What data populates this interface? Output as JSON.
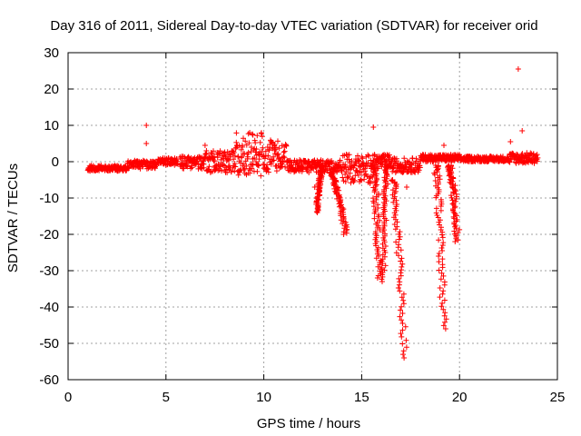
{
  "chart_data": {
    "type": "scatter",
    "title": "Day 316 of 2011, Sidereal Day-to-day VTEC variation (SDTVAR) for receiver orid",
    "xlabel": "GPS time / hours",
    "ylabel": "SDTVAR / TECUs",
    "xlim": [
      0,
      25
    ],
    "ylim": [
      -60,
      30
    ],
    "xticks": [
      0,
      5,
      10,
      15,
      20,
      25
    ],
    "yticks": [
      30,
      20,
      10,
      0,
      -10,
      -20,
      -30,
      -40,
      -50,
      -60
    ],
    "grid": true,
    "marker": "+",
    "color": "#ff0000",
    "bands": [
      {
        "x0": 1.0,
        "x1": 3.0,
        "lo": -2.6,
        "hi": -1.0
      },
      {
        "x0": 3.0,
        "x1": 4.5,
        "lo": -2.0,
        "hi": 0.3
      },
      {
        "x0": 4.5,
        "x1": 5.6,
        "lo": -1.0,
        "hi": 1.0
      },
      {
        "x0": 5.7,
        "x1": 7.0,
        "lo": -2.0,
        "hi": 1.5
      },
      {
        "x0": 7.0,
        "x1": 8.5,
        "lo": -3.0,
        "hi": 3.0
      },
      {
        "x0": 8.5,
        "x1": 10.0,
        "lo": -4.0,
        "hi": 8.0
      },
      {
        "x0": 10.0,
        "x1": 11.2,
        "lo": -3.0,
        "hi": 6.0
      },
      {
        "x0": 11.2,
        "x1": 12.5,
        "lo": -3.0,
        "hi": 0.5
      },
      {
        "x0": 12.5,
        "x1": 14.0,
        "lo": -3.0,
        "hi": 0.5
      },
      {
        "x0": 14.0,
        "x1": 15.5,
        "lo": -6.0,
        "hi": 2.0
      },
      {
        "x0": 15.5,
        "x1": 16.5,
        "lo": -2.0,
        "hi": 2.0
      },
      {
        "x0": 16.5,
        "x1": 18.0,
        "lo": -3.0,
        "hi": 1.0
      },
      {
        "x0": 18.0,
        "x1": 20.0,
        "lo": 0.0,
        "hi": 2.0
      },
      {
        "x0": 20.0,
        "x1": 22.5,
        "lo": 0.0,
        "hi": 1.5
      },
      {
        "x0": 22.5,
        "x1": 24.0,
        "lo": -0.5,
        "hi": 2.5
      }
    ],
    "curves": [
      {
        "x": [
          13.0,
          12.7
        ],
        "y": [
          -1.0,
          -14.0
        ],
        "width": 0.15
      },
      {
        "x": [
          13.4,
          14.2
        ],
        "y": [
          -3.0,
          -20.0
        ],
        "width": 0.25
      },
      {
        "x": [
          15.6,
          15.9
        ],
        "y": [
          -1.0,
          -32.0
        ],
        "width": 0.3
      },
      {
        "x": [
          16.3,
          16.1
        ],
        "y": [
          -1.0,
          -33.0
        ],
        "width": 0.2
      },
      {
        "x": [
          16.6,
          17.2
        ],
        "y": [
          -5.0,
          -54.0
        ],
        "width": 0.3
      },
      {
        "x": [
          18.8,
          19.2
        ],
        "y": [
          -1.0,
          -46.0
        ],
        "width": 0.3
      },
      {
        "x": [
          19.5,
          19.9
        ],
        "y": [
          -1.0,
          -22.0
        ],
        "width": 0.3
      }
    ],
    "outliers": [
      {
        "x": 4.0,
        "y": 10.0
      },
      {
        "x": 4.0,
        "y": 5.0
      },
      {
        "x": 15.6,
        "y": 9.5
      },
      {
        "x": 19.2,
        "y": 4.5
      },
      {
        "x": 23.0,
        "y": 25.5
      },
      {
        "x": 23.2,
        "y": 8.5
      },
      {
        "x": 22.6,
        "y": 5.5
      },
      {
        "x": 7.0,
        "y": 4.5
      },
      {
        "x": 17.3,
        "y": -7.0
      },
      {
        "x": 12.6,
        "y": -7.0
      }
    ]
  }
}
